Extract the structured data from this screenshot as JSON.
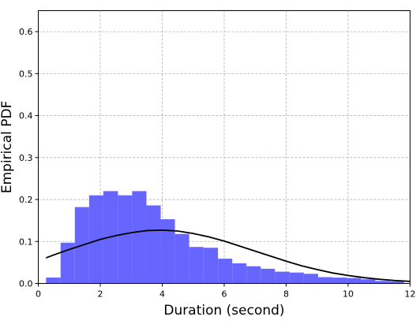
{
  "chart_data": {
    "type": "bar",
    "title": "",
    "xlabel": "Duration (second)",
    "ylabel": "Empirical PDF",
    "xlim": [
      0,
      12
    ],
    "ylim": [
      0,
      0.65
    ],
    "xticks": [
      0,
      2,
      4,
      6,
      8,
      10,
      12
    ],
    "yticks": [
      0.0,
      0.1,
      0.2,
      0.3,
      0.4,
      0.5,
      0.6
    ],
    "xtick_labels": [
      "0",
      "2",
      "4",
      "6",
      "8",
      "10",
      "12"
    ],
    "ytick_labels": [
      "0.0",
      "0.1",
      "0.2",
      "0.3",
      "0.4",
      "0.5",
      "0.6"
    ],
    "grid": true,
    "colors": {
      "histogram": "#6666ff",
      "fit_curve": "#000000",
      "grid": "#b0b0b0"
    },
    "histogram": {
      "bin_edges": [
        0.25,
        0.72,
        1.18,
        1.64,
        2.1,
        2.57,
        3.03,
        3.49,
        3.95,
        4.41,
        4.87,
        5.33,
        5.8,
        6.26,
        6.72,
        7.18,
        7.64,
        8.11,
        8.57,
        9.03,
        9.49,
        9.95,
        10.41,
        10.88,
        11.34,
        11.8
      ],
      "values": [
        0.014,
        0.097,
        0.182,
        0.21,
        0.22,
        0.21,
        0.22,
        0.186,
        0.153,
        0.118,
        0.087,
        0.085,
        0.059,
        0.048,
        0.041,
        0.035,
        0.028,
        0.026,
        0.023,
        0.015,
        0.014,
        0.013,
        0.01,
        0.006,
        0.005
      ]
    },
    "fit_curve": {
      "x": [
        0.25,
        0.5,
        1.0,
        1.5,
        2.0,
        2.5,
        3.0,
        3.5,
        4.0,
        4.5,
        5.0,
        5.5,
        6.0,
        6.5,
        7.0,
        7.5,
        8.0,
        8.5,
        9.0,
        9.5,
        10.0,
        10.5,
        11.0,
        11.5,
        12.0
      ],
      "y": [
        0.061,
        0.068,
        0.081,
        0.093,
        0.105,
        0.114,
        0.121,
        0.126,
        0.127,
        0.125,
        0.119,
        0.111,
        0.101,
        0.089,
        0.077,
        0.065,
        0.053,
        0.042,
        0.033,
        0.025,
        0.019,
        0.014,
        0.01,
        0.007,
        0.005
      ]
    }
  }
}
